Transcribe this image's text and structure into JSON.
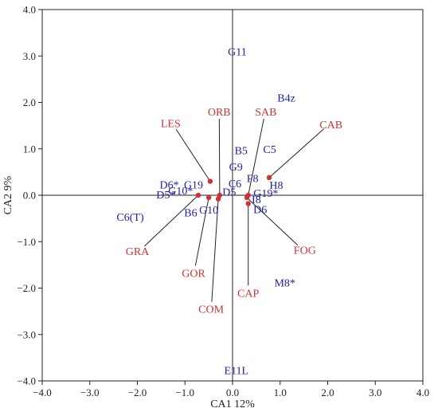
{
  "chart_data": {
    "type": "scatter",
    "title": "",
    "xlabel": "CA1 12%",
    "ylabel": "CA2 9%",
    "xlim": [
      -4.0,
      4.0
    ],
    "ylim": [
      -4.0,
      4.0
    ],
    "xticks": [
      "−4.0",
      "−3.0",
      "−2.0",
      "−1.0",
      "0.0",
      "1.0",
      "2.0",
      "3.0",
      "4.0"
    ],
    "yticks": [
      "4.0",
      "3.0",
      "2.0",
      "1.0",
      "0.0",
      "−1.0",
      "−2.0",
      "−3.0",
      "−4.0"
    ],
    "xtick_values": [
      -4,
      -3,
      -2,
      -1,
      0,
      1,
      2,
      3,
      4
    ],
    "ytick_values": [
      4,
      3,
      2,
      1,
      0,
      -1,
      -2,
      -3,
      -4
    ],
    "grid": false,
    "colors": {
      "species": "#2020aa",
      "variables": "#cc3333",
      "axis": "#222222"
    },
    "site_labels": [
      {
        "label": "G11",
        "x": 0.1,
        "y": 3.1
      },
      {
        "label": "B4z",
        "x": 1.13,
        "y": 2.1
      },
      {
        "label": "C5",
        "x": 0.78,
        "y": 1.0
      },
      {
        "label": "B5",
        "x": 0.18,
        "y": 0.97
      },
      {
        "label": "G9",
        "x": 0.07,
        "y": 0.62
      },
      {
        "label": "F8",
        "x": 0.42,
        "y": 0.37
      },
      {
        "label": "C6",
        "x": 0.05,
        "y": 0.26
      },
      {
        "label": "H8",
        "x": 0.92,
        "y": 0.22
      },
      {
        "label": "G19*",
        "x": 0.7,
        "y": 0.05
      },
      {
        "label": "I8",
        "x": 0.5,
        "y": -0.09
      },
      {
        "label": "D6",
        "x": 0.58,
        "y": -0.3
      },
      {
        "label": "D6*",
        "x": -1.33,
        "y": 0.23
      },
      {
        "label": "G19",
        "x": -0.82,
        "y": 0.23
      },
      {
        "label": "D5*",
        "x": -1.4,
        "y": 0.02
      },
      {
        "label": "G10*",
        "x": -1.09,
        "y": 0.1
      },
      {
        "label": "D5",
        "x": -0.07,
        "y": 0.08
      },
      {
        "label": "B6",
        "x": -0.88,
        "y": -0.37
      },
      {
        "label": "G10",
        "x": -0.5,
        "y": -0.31
      },
      {
        "label": "C6(T)",
        "x": -2.15,
        "y": -0.46
      },
      {
        "label": "M8*",
        "x": 1.1,
        "y": -1.88
      },
      {
        "label": "E11L",
        "x": 0.08,
        "y": -3.77
      }
    ],
    "variable_arrows": [
      {
        "label": "LES",
        "x": -0.47,
        "y": 0.3,
        "label_x": -1.3,
        "label_y": 1.55
      },
      {
        "label": "ORB",
        "x": -0.27,
        "y": 0.0,
        "label_x": -0.28,
        "label_y": 1.8
      },
      {
        "label": "SAB",
        "x": 0.33,
        "y": 0.0,
        "label_x": 0.7,
        "label_y": 1.8
      },
      {
        "label": "CAB",
        "x": 0.77,
        "y": 0.38,
        "label_x": 2.07,
        "label_y": 1.53
      },
      {
        "label": "GRA",
        "x": -0.72,
        "y": 0.0,
        "label_x": -2.0,
        "label_y": -1.2
      },
      {
        "label": "GOR",
        "x": -0.5,
        "y": -0.05,
        "label_x": -0.82,
        "label_y": -1.67
      },
      {
        "label": "COM",
        "x": -0.3,
        "y": -0.08,
        "label_x": -0.45,
        "label_y": -2.45
      },
      {
        "label": "CAP",
        "x": 0.33,
        "y": -0.18,
        "label_x": 0.33,
        "label_y": -2.1
      },
      {
        "label": "FOG",
        "x": 0.3,
        "y": -0.05,
        "label_x": 1.52,
        "label_y": -1.18
      }
    ]
  }
}
